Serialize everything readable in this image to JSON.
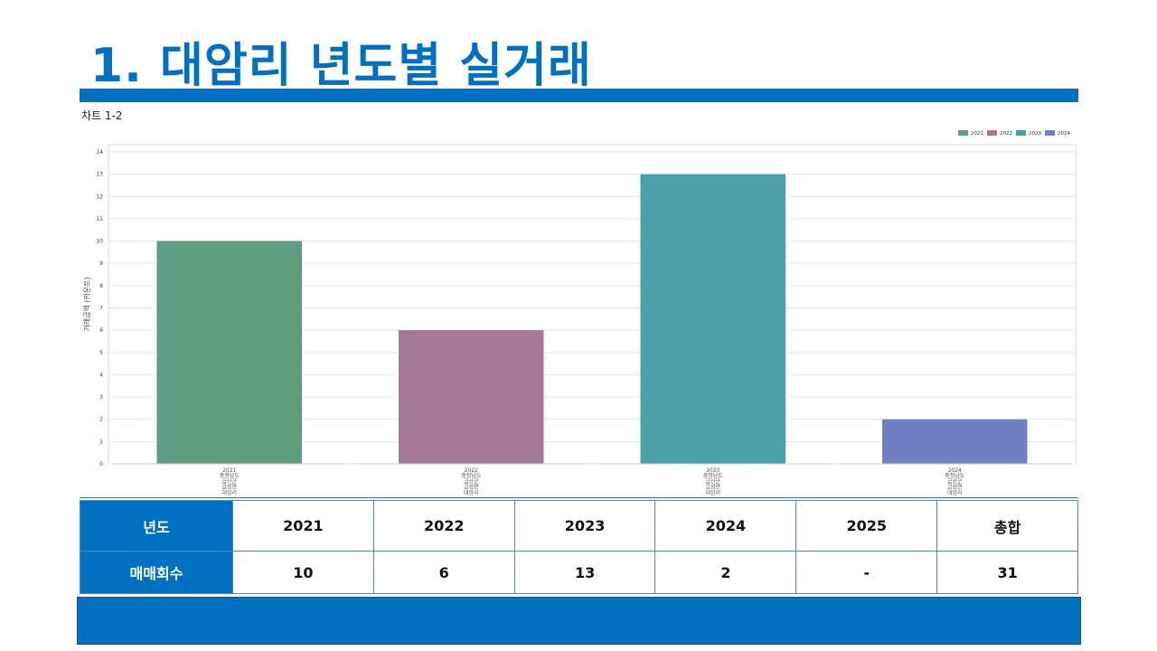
{
  "header": {
    "title": "1. 대암리 년도별 실거래"
  },
  "chart_label": "차트 1-2",
  "colors": {
    "accent": "#0070C0"
  },
  "chart_data": {
    "type": "bar",
    "categories": [
      "2021",
      "2022",
      "2023",
      "2024"
    ],
    "category_lines": [
      [
        "2021",
        "충청남도",
        "금산군",
        "금성면",
        "대암리"
      ],
      [
        "2022",
        "충청남도",
        "금산군",
        "금성면",
        "대암리"
      ],
      [
        "2023",
        "충청남도",
        "금산군",
        "금성면",
        "대암리"
      ],
      [
        "2024",
        "충청남도",
        "금산군",
        "금성면",
        "대암리"
      ]
    ],
    "values": [
      10,
      6,
      13,
      2
    ],
    "colors": [
      "#5C9E7E",
      "#A57898",
      "#4BA1A8",
      "#7180C4"
    ],
    "legend": [
      "2021",
      "2022",
      "2023",
      "2024"
    ],
    "legend_position": "top-right",
    "ylabel": "거래금액 (카운트)",
    "ylim": [
      0,
      14
    ],
    "yticks": [
      0,
      1,
      2,
      3,
      4,
      5,
      6,
      7,
      8,
      9,
      10,
      11,
      12,
      13,
      14
    ],
    "grid": true
  },
  "table": {
    "row1_header": "년도",
    "row2_header": "매매회수",
    "years": [
      "2021",
      "2022",
      "2023",
      "2024",
      "2025",
      "총합"
    ],
    "counts": [
      "10",
      "6",
      "13",
      "2",
      "-",
      "31"
    ]
  }
}
